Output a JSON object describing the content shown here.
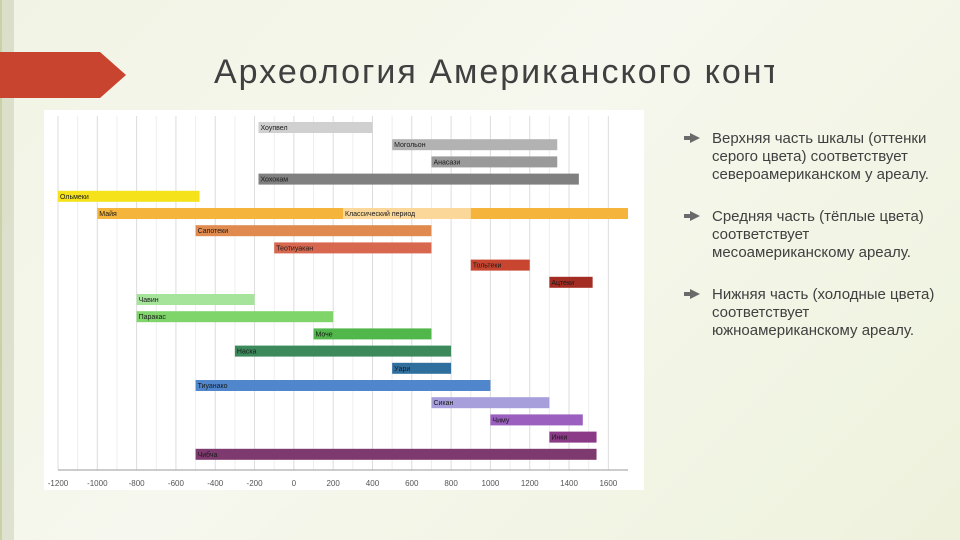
{
  "slide": {
    "title": "Археология Американского континента"
  },
  "bullets": [
    "Верхняя часть шкалы (оттенки серого цвета) соответствует североамериканском у ареалу.",
    "Средняя часть (тёплые цвета) соответствует месоамериканскому ареалу.",
    "Нижняя часть (холодные цвета) соответствует южноамериканскому ареалу."
  ],
  "chart_data": {
    "type": "bar",
    "orientation": "horizontal-timeline",
    "title": "",
    "xlabel": "",
    "ylabel": "",
    "xlim": [
      -1200,
      1700
    ],
    "xticks": [
      -1200,
      -1000,
      -800,
      -600,
      -400,
      -200,
      0,
      200,
      400,
      600,
      800,
      1000,
      1200,
      1400,
      1600
    ],
    "grid": true,
    "bars": [
      {
        "label": "Хоупвел",
        "start": -180,
        "end": 400,
        "color": "#d0d0d0"
      },
      {
        "label": "Могольон",
        "start": 500,
        "end": 1340,
        "color": "#b2b2b2"
      },
      {
        "label": "Анасази",
        "start": 700,
        "end": 1340,
        "color": "#9a9a9a"
      },
      {
        "label": "Хохокам",
        "start": -180,
        "end": 1450,
        "color": "#808080"
      },
      {
        "label": "Ольмеки",
        "start": -1200,
        "end": -480,
        "color": "#f5e21a"
      },
      {
        "label": "Майя",
        "start": -1000,
        "end": 1700,
        "color": "#f5b53c"
      },
      {
        "label": "Классический период",
        "start": 250,
        "end": 900,
        "color": "#fbd89a"
      },
      {
        "label": "Сапотеки",
        "start": -500,
        "end": 700,
        "color": "#e08a4f"
      },
      {
        "label": "Теотиуакан",
        "start": -100,
        "end": 700,
        "color": "#d8674f"
      },
      {
        "label": "Тольтеки",
        "start": 900,
        "end": 1200,
        "color": "#c8462f"
      },
      {
        "label": "Ацтеки",
        "start": 1300,
        "end": 1520,
        "color": "#a42d23"
      },
      {
        "label": "Чавин",
        "start": -800,
        "end": -200,
        "color": "#a6e49c"
      },
      {
        "label": "Паракас",
        "start": -800,
        "end": 200,
        "color": "#7fd46a"
      },
      {
        "label": "Моче",
        "start": 100,
        "end": 700,
        "color": "#52b74b"
      },
      {
        "label": "Наска",
        "start": -300,
        "end": 800,
        "color": "#3c8a5c"
      },
      {
        "label": "Уари",
        "start": 500,
        "end": 800,
        "color": "#2f6f9e"
      },
      {
        "label": "Тиуанако",
        "start": -500,
        "end": 1000,
        "color": "#4f86cc"
      },
      {
        "label": "Сикан",
        "start": 700,
        "end": 1300,
        "color": "#a79edc"
      },
      {
        "label": "Чиму",
        "start": 1000,
        "end": 1470,
        "color": "#9b5fc0"
      },
      {
        "label": "Инки",
        "start": 1300,
        "end": 1540,
        "color": "#8a3a86"
      },
      {
        "label": "Чибча",
        "start": -500,
        "end": 1540,
        "color": "#7e3a6e"
      }
    ]
  }
}
